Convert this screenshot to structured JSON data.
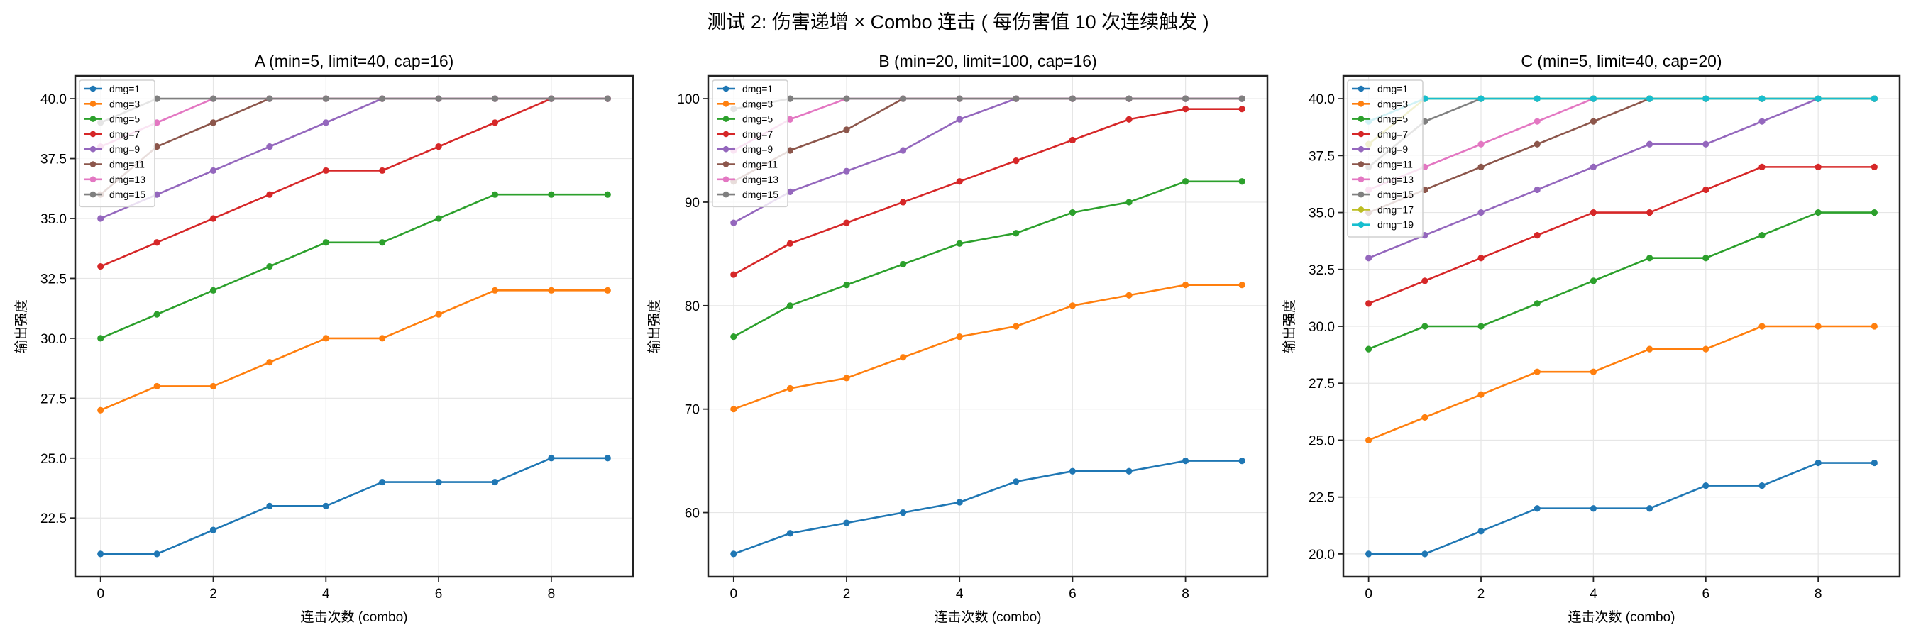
{
  "figure": {
    "suptitle": "测试 2: 伤害递增 × Combo 连击 ( 每伤害值 10 次连续触发 )"
  },
  "colors": {
    "dmg=1": "#1f77b4",
    "dmg=3": "#ff7f0e",
    "dmg=5": "#2ca02c",
    "dmg=7": "#d62728",
    "dmg=9": "#9467bd",
    "dmg=11": "#8c564b",
    "dmg=13": "#e377c2",
    "dmg=15": "#7f7f7f",
    "dmg=17": "#bcbd22",
    "dmg=19": "#17becf"
  },
  "chart_data": [
    {
      "type": "line",
      "title": "A (min=5, limit=40, cap=16)",
      "xlabel": "连击次数 (combo)",
      "ylabel": "输出强度",
      "x": [
        0,
        1,
        2,
        3,
        4,
        5,
        6,
        7,
        8,
        9
      ],
      "xlim": [
        -0.45,
        9.45
      ],
      "ylim": [
        20.05,
        40.95
      ],
      "xticks": [
        0,
        2,
        4,
        6,
        8
      ],
      "yticks": [
        22.5,
        25.0,
        27.5,
        30.0,
        32.5,
        35.0,
        37.5,
        40.0
      ],
      "ytick_labels": [
        "22.5",
        "25.0",
        "27.5",
        "30.0",
        "32.5",
        "35.0",
        "37.5",
        "40.0"
      ],
      "grid": true,
      "legend_position": "upper left",
      "series": [
        {
          "name": "dmg=1",
          "values": [
            21,
            21,
            22,
            23,
            23,
            24,
            24,
            24,
            25,
            25
          ]
        },
        {
          "name": "dmg=3",
          "values": [
            27,
            28,
            28,
            29,
            30,
            30,
            31,
            32,
            32,
            32
          ]
        },
        {
          "name": "dmg=5",
          "values": [
            30,
            31,
            32,
            33,
            34,
            34,
            35,
            36,
            36,
            36
          ]
        },
        {
          "name": "dmg=7",
          "values": [
            33,
            34,
            35,
            36,
            37,
            37,
            38,
            39,
            40,
            40
          ]
        },
        {
          "name": "dmg=9",
          "values": [
            35,
            36,
            37,
            38,
            39,
            40,
            40,
            40,
            40,
            40
          ]
        },
        {
          "name": "dmg=11",
          "values": [
            36,
            38,
            39,
            40,
            40,
            40,
            40,
            40,
            40,
            40
          ]
        },
        {
          "name": "dmg=13",
          "values": [
            38,
            39,
            40,
            40,
            40,
            40,
            40,
            40,
            40,
            40
          ]
        },
        {
          "name": "dmg=15",
          "values": [
            39,
            40,
            40,
            40,
            40,
            40,
            40,
            40,
            40,
            40
          ]
        }
      ]
    },
    {
      "type": "line",
      "title": "B (min=20, limit=100, cap=16)",
      "xlabel": "连击次数 (combo)",
      "ylabel": "输出强度",
      "x": [
        0,
        1,
        2,
        3,
        4,
        5,
        6,
        7,
        8,
        9
      ],
      "xlim": [
        -0.45,
        9.45
      ],
      "ylim": [
        53.8,
        102.2
      ],
      "xticks": [
        0,
        2,
        4,
        6,
        8
      ],
      "yticks": [
        60,
        70,
        80,
        90,
        100
      ],
      "ytick_labels": [
        "60",
        "70",
        "80",
        "90",
        "100"
      ],
      "grid": true,
      "legend_position": "upper left",
      "series": [
        {
          "name": "dmg=1",
          "values": [
            56,
            58,
            59,
            60,
            61,
            63,
            64,
            64,
            65,
            65
          ]
        },
        {
          "name": "dmg=3",
          "values": [
            70,
            72,
            73,
            75,
            77,
            78,
            80,
            81,
            82,
            82
          ]
        },
        {
          "name": "dmg=5",
          "values": [
            77,
            80,
            82,
            84,
            86,
            87,
            89,
            90,
            92,
            92
          ]
        },
        {
          "name": "dmg=7",
          "values": [
            83,
            86,
            88,
            90,
            92,
            94,
            96,
            98,
            99,
            99
          ]
        },
        {
          "name": "dmg=9",
          "values": [
            88,
            91,
            93,
            95,
            98,
            100,
            100,
            100,
            100,
            100
          ]
        },
        {
          "name": "dmg=11",
          "values": [
            92,
            95,
            97,
            100,
            100,
            100,
            100,
            100,
            100,
            100
          ]
        },
        {
          "name": "dmg=13",
          "values": [
            95,
            98,
            100,
            100,
            100,
            100,
            100,
            100,
            100,
            100
          ]
        },
        {
          "name": "dmg=15",
          "values": [
            99,
            100,
            100,
            100,
            100,
            100,
            100,
            100,
            100,
            100
          ]
        }
      ]
    },
    {
      "type": "line",
      "title": "C (min=5, limit=40, cap=20)",
      "xlabel": "连击次数 (combo)",
      "ylabel": "输出强度",
      "x": [
        0,
        1,
        2,
        3,
        4,
        5,
        6,
        7,
        8,
        9
      ],
      "xlim": [
        -0.45,
        9.45
      ],
      "ylim": [
        19.0,
        41.0
      ],
      "xticks": [
        0,
        2,
        4,
        6,
        8
      ],
      "yticks": [
        20.0,
        22.5,
        25.0,
        27.5,
        30.0,
        32.5,
        35.0,
        37.5,
        40.0
      ],
      "ytick_labels": [
        "20.0",
        "22.5",
        "25.0",
        "27.5",
        "30.0",
        "32.5",
        "35.0",
        "37.5",
        "40.0"
      ],
      "grid": true,
      "legend_position": "upper left",
      "series": [
        {
          "name": "dmg=1",
          "values": [
            20,
            20,
            21,
            22,
            22,
            22,
            23,
            23,
            24,
            24
          ]
        },
        {
          "name": "dmg=3",
          "values": [
            25,
            26,
            27,
            28,
            28,
            29,
            29,
            30,
            30,
            30
          ]
        },
        {
          "name": "dmg=5",
          "values": [
            29,
            30,
            30,
            31,
            32,
            33,
            33,
            34,
            35,
            35
          ]
        },
        {
          "name": "dmg=7",
          "values": [
            31,
            32,
            33,
            34,
            35,
            35,
            36,
            37,
            37,
            37
          ]
        },
        {
          "name": "dmg=9",
          "values": [
            33,
            34,
            35,
            36,
            37,
            38,
            38,
            39,
            40,
            40
          ]
        },
        {
          "name": "dmg=11",
          "values": [
            35,
            36,
            37,
            38,
            39,
            40,
            40,
            40,
            40,
            40
          ]
        },
        {
          "name": "dmg=13",
          "values": [
            36,
            37,
            38,
            39,
            40,
            40,
            40,
            40,
            40,
            40
          ]
        },
        {
          "name": "dmg=15",
          "values": [
            37,
            39,
            40,
            40,
            40,
            40,
            40,
            40,
            40,
            40
          ]
        },
        {
          "name": "dmg=17",
          "values": [
            38,
            40,
            40,
            40,
            40,
            40,
            40,
            40,
            40,
            40
          ]
        },
        {
          "name": "dmg=19",
          "values": [
            39,
            40,
            40,
            40,
            40,
            40,
            40,
            40,
            40,
            40
          ]
        }
      ]
    }
  ]
}
